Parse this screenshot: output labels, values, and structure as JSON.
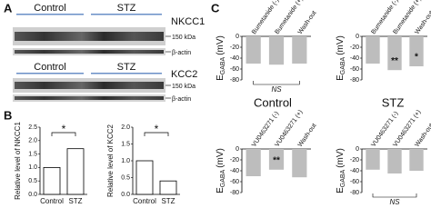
{
  "panel_a": {
    "label": "A",
    "blots": [
      {
        "columns": [
          "Control",
          "STZ"
        ],
        "protein": "NKCC1",
        "marker": "150 kDa",
        "loading": "β-actin"
      },
      {
        "columns": [
          "Control",
          "STZ"
        ],
        "protein": "KCC2",
        "marker": "150 kDa",
        "loading": "β-actin"
      }
    ]
  },
  "panel_b": {
    "label": "B",
    "charts": [
      {
        "type": "bar",
        "y_label": "Relative level of NKCC1",
        "categories": [
          "Control",
          "STZ"
        ],
        "values": [
          1.0,
          1.7
        ],
        "ylim": [
          0,
          2.5
        ],
        "yticks": [
          {
            "value": 0,
            "label": "0.0"
          },
          {
            "value": 0.5,
            "label": "0.5"
          },
          {
            "value": 1,
            "label": "1.0"
          },
          {
            "value": 1.5,
            "label": "1.5"
          },
          {
            "value": 2,
            "label": "2.0"
          },
          {
            "value": 2.5,
            "label": "2.5"
          }
        ],
        "significance": "*"
      },
      {
        "type": "bar",
        "y_label": "Relative level of KCC2",
        "categories": [
          "Control",
          "STZ"
        ],
        "values": [
          1.0,
          0.4
        ],
        "ylim": [
          0,
          2
        ],
        "yticks": [
          {
            "value": 0,
            "label": "0.0"
          },
          {
            "value": 0.5,
            "label": "0.5"
          },
          {
            "value": 1,
            "label": "1.0"
          },
          {
            "value": 1.5,
            "label": "1.5"
          },
          {
            "value": 2,
            "label": "2.0"
          }
        ],
        "significance": "*"
      }
    ]
  },
  "panel_c": {
    "label": "C",
    "y_label": {
      "main": "E",
      "sub": "GABA",
      "unit": "(mV)"
    },
    "group_titles": [
      "Control",
      "STZ"
    ],
    "charts": [
      {
        "type": "bar",
        "categories": [
          "Bumetanide (-)",
          "Bumetanide (+)",
          "Wash-out"
        ],
        "values": [
          -50,
          -52,
          -50
        ],
        "ylim": [
          -80,
          0
        ],
        "yticks": [
          -80,
          -60,
          -40,
          -20,
          0
        ],
        "note": "NS"
      },
      {
        "type": "bar",
        "categories": [
          "Bumetanide (-)",
          "Bumetanide (+)",
          "Wash-out"
        ],
        "values": [
          -50,
          -62,
          -55
        ],
        "ylim": [
          -80,
          0
        ],
        "yticks": [
          -80,
          -60,
          -40,
          -20,
          0
        ],
        "bar_labels": [
          null,
          "**",
          "*"
        ]
      },
      {
        "type": "bar",
        "categories": [
          "VU0463271 (-)",
          "VU0463271 (+)",
          "Wash-out"
        ],
        "values": [
          -50,
          -38,
          -52
        ],
        "ylim": [
          -80,
          0
        ],
        "yticks": [
          -80,
          -60,
          -40,
          -20,
          0
        ],
        "bar_labels": [
          null,
          "**",
          null
        ]
      },
      {
        "type": "bar",
        "categories": [
          "VU0463271 (-)",
          "VU0463271 (+)",
          "Wash-out"
        ],
        "values": [
          -38,
          -45,
          -40
        ],
        "ylim": [
          -80,
          0
        ],
        "yticks": [
          -80,
          -60,
          -40,
          -20,
          0
        ],
        "note": "NS"
      }
    ]
  }
}
